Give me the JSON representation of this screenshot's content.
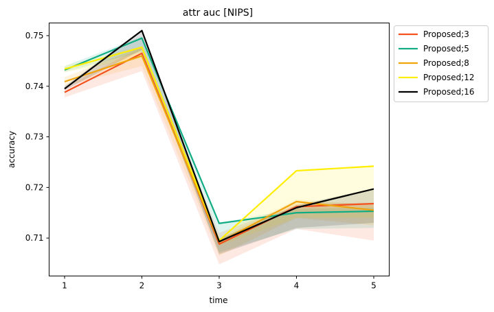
{
  "chart_data": {
    "type": "line",
    "title": "attr auc [NIPS]",
    "xlabel": "time",
    "ylabel": "accuracy",
    "x": [
      1,
      2,
      3,
      4,
      5
    ],
    "x_ticks": [
      "1",
      "2",
      "3",
      "4",
      "5"
    ],
    "y_ticks": [
      "0.71",
      "0.72",
      "0.73",
      "0.74",
      "0.75"
    ],
    "y_tick_values": [
      0.71,
      0.72,
      0.73,
      0.74,
      0.75
    ],
    "xlim": [
      0.8,
      5.2
    ],
    "ylim": [
      0.7025,
      0.7525
    ],
    "legend_position": "outside-top-right",
    "series": [
      {
        "name": "Proposed;3",
        "color": "#f4511e",
        "values": [
          0.7388,
          0.7465,
          0.7088,
          0.7162,
          0.7168
        ],
        "band_low": [
          0.7378,
          0.743,
          0.7048,
          0.7118,
          0.7095
        ],
        "band_high": [
          0.7398,
          0.7478,
          0.711,
          0.7168,
          0.717
        ]
      },
      {
        "name": "Proposed;5",
        "color": "#10ac84",
        "values": [
          0.7432,
          0.7495,
          0.7129,
          0.715,
          0.7153
        ],
        "band_low": [
          0.7428,
          0.7468,
          0.7072,
          0.7118,
          0.712
        ],
        "band_high": [
          0.744,
          0.7498,
          0.713,
          0.7158,
          0.716
        ]
      },
      {
        "name": "Proposed;8",
        "color": "#f0a30a",
        "values": [
          0.7409,
          0.746,
          0.7092,
          0.7172,
          0.7155
        ],
        "band_low": [
          0.74,
          0.744,
          0.7065,
          0.714,
          0.7125
        ],
        "band_high": [
          0.7418,
          0.7478,
          0.7098,
          0.7176,
          0.7165
        ]
      },
      {
        "name": "Proposed;12",
        "color": "#ffee00",
        "values": [
          0.7434,
          0.7477,
          0.7095,
          0.7233,
          0.7242
        ],
        "band_low": [
          0.7428,
          0.7455,
          0.7085,
          0.714,
          0.714
        ],
        "band_high": [
          0.744,
          0.748,
          0.7098,
          0.7233,
          0.7243
        ]
      },
      {
        "name": "Proposed;16",
        "color": "#000000",
        "values": [
          0.7395,
          0.751,
          0.7093,
          0.716,
          0.7197
        ],
        "band_low": [
          0.7392,
          0.7472,
          0.7068,
          0.712,
          0.713
        ],
        "band_high": [
          0.74,
          0.7512,
          0.7098,
          0.7165,
          0.7198
        ]
      }
    ]
  }
}
